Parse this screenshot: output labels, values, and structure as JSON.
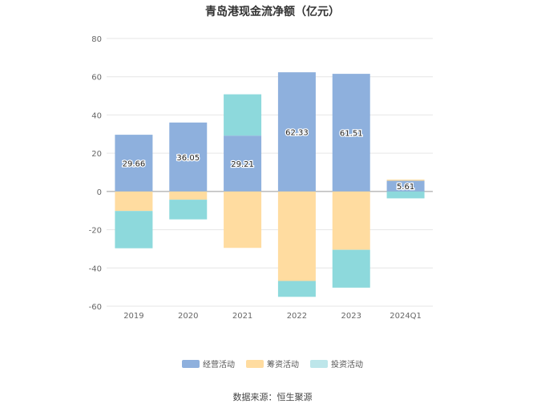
{
  "chart_data": {
    "type": "bar",
    "stacked": true,
    "title": "青岛港现金流净额（亿元）",
    "categories": [
      "2019",
      "2020",
      "2021",
      "2022",
      "2023",
      "2024Q1"
    ],
    "ylim": [
      -60,
      80
    ],
    "yticks": [
      80,
      60,
      40,
      20,
      0,
      -20,
      -40,
      -60
    ],
    "grid": true,
    "legend_position": "bottom",
    "series": [
      {
        "name": "经营活动",
        "color": "#8eb0dd",
        "values": [
          29.66,
          36.05,
          29.21,
          62.33,
          61.51,
          5.61
        ]
      },
      {
        "name": "筹资活动",
        "color": "#ffdca0",
        "values": [
          -10.2,
          -4.3,
          -29.5,
          -46.8,
          -30.5,
          0.6
        ]
      },
      {
        "name": "投资活动",
        "color": "#8dd9dc",
        "values": [
          -19.5,
          -10.3,
          21.6,
          -8.3,
          -19.8,
          -3.6
        ]
      }
    ],
    "data_labels": {
      "series": "经营活动",
      "values": [
        "29.66",
        "36.05",
        "29.21",
        "62.33",
        "61.51",
        "5.61"
      ]
    }
  },
  "legend": {
    "items": [
      {
        "label": "经营活动",
        "color": "#8eb0dd"
      },
      {
        "label": "筹资活动",
        "color": "#ffdca0"
      },
      {
        "label": "投资活动",
        "color": "#bde6ea"
      }
    ]
  },
  "source_text": "数据来源：恒生聚源"
}
